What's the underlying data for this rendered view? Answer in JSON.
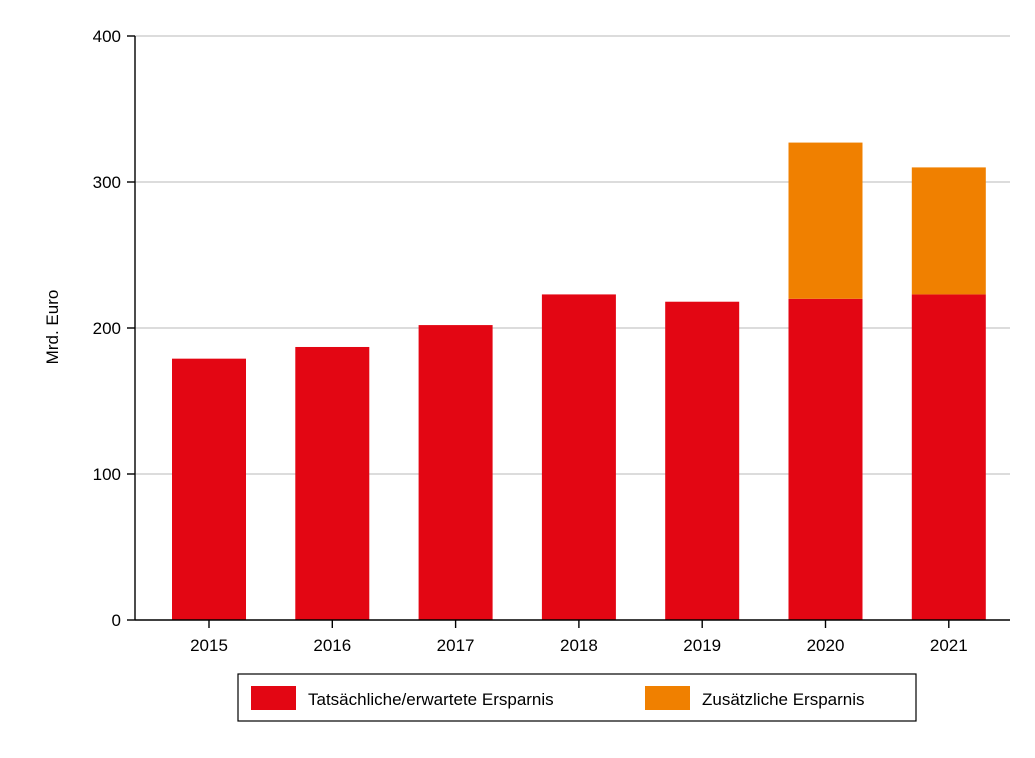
{
  "chart_data": {
    "type": "bar",
    "stacked": true,
    "categories": [
      "2015",
      "2016",
      "2017",
      "2018",
      "2019",
      "2020",
      "2021"
    ],
    "series": [
      {
        "name": "Tatsächliche/erwartete Ersparnis",
        "color": "#e30613",
        "values": [
          179,
          187,
          202,
          223,
          218,
          220,
          223
        ]
      },
      {
        "name": "Zusätzliche Ersparnis",
        "color": "#f08000",
        "values": [
          0,
          0,
          0,
          0,
          0,
          107,
          87
        ]
      }
    ],
    "title": "",
    "xlabel": "",
    "ylabel": "Mrd. Euro",
    "ylim": [
      0,
      400
    ],
    "yticks": [
      "0",
      "100",
      "200",
      "300",
      "400"
    ],
    "grid": true,
    "legend_position": "bottom"
  }
}
